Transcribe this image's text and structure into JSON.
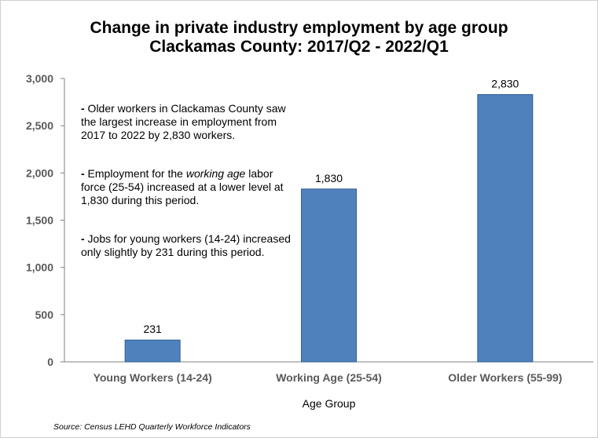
{
  "title": "Change in private industry employment by age group",
  "subtitle": "Clackamas County: 2017/Q2 - 2022/Q1",
  "notes": {
    "n1": {
      "dash": "-",
      "text": " Older workers in Clackamas County saw the largest increase in employment from 2017 to 2022 by 2,830 workers."
    },
    "n2": {
      "dash": "-",
      "pre": " Employment for the ",
      "em": "working age",
      "post": " labor force (25-54) increased at a lower level at 1,830 during this period."
    },
    "n3": {
      "dash": "-",
      "text": " Jobs for young workers (14-24) increased only slightly by 231 during this period."
    }
  },
  "source": "Source: Census LEHD Quarterly Workforce Indicators",
  "colors": {
    "bar": "#4f81bd",
    "bar_edge": "#2f5f93",
    "axis": "#808080"
  },
  "chart_data": {
    "type": "bar",
    "title": "Change in private industry employment by age group",
    "subtitle": "Clackamas County: 2017/Q2 - 2022/Q1",
    "categories": [
      "Young Workers (14-24)",
      "Working Age (25-54)",
      "Older Workers (55-99)"
    ],
    "values": [
      231,
      1830,
      2830
    ],
    "data_labels": [
      "231",
      "1,830",
      "2,830"
    ],
    "xlabel": "Age Group",
    "ylabel": "",
    "ylim": [
      0,
      3000
    ],
    "yticks": [
      0,
      500,
      1000,
      1500,
      2000,
      2500,
      3000
    ],
    "ytick_labels": [
      "0",
      "500",
      "1,000",
      "1,500",
      "2,000",
      "2,500",
      "3,000"
    ],
    "grid": false,
    "legend": "none"
  }
}
